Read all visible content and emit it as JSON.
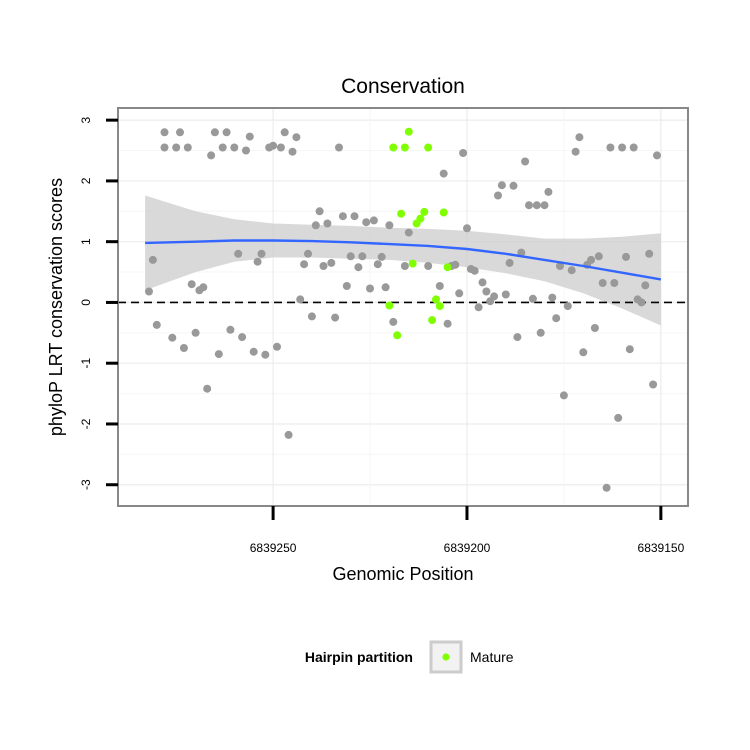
{
  "chart_data": {
    "type": "scatter",
    "title": "Conservation",
    "xlabel": "Genomic Position",
    "ylabel": "phyloP LRT conservation scores",
    "x_reversed": true,
    "xlim": [
      6839290,
      6839143
    ],
    "ylim": [
      -3.35,
      3.2
    ],
    "x_ticks": [
      6839250,
      6839200,
      6839150
    ],
    "x_tick_labels": [
      "6839250",
      "6839200",
      "6839150"
    ],
    "y_ticks": [
      -3,
      -2,
      -1,
      0,
      1,
      2,
      3
    ],
    "y_tick_labels": [
      "-3",
      "-2",
      "-1",
      "0",
      "1",
      "2",
      "3"
    ],
    "grid": true,
    "reference_line": {
      "y": 0,
      "style": "dashed"
    },
    "legend": {
      "title": "Hairpin partition",
      "position": "bottom",
      "entries": [
        "Mature"
      ]
    },
    "colors": {
      "background": "#ffffff",
      "panel_border": "#888888",
      "other": "#999999",
      "mature": "#7fff00",
      "smooth": "#3366ff",
      "ribbon": "#cccccc"
    },
    "series": [
      {
        "group": "other",
        "points": [
          [
            6839282,
            0.18
          ],
          [
            6839281,
            0.7
          ],
          [
            6839280,
            -0.37
          ],
          [
            6839278,
            2.8
          ],
          [
            6839278,
            2.55
          ],
          [
            6839276,
            -0.58
          ],
          [
            6839275,
            2.55
          ],
          [
            6839274,
            2.8
          ],
          [
            6839273,
            -0.75
          ],
          [
            6839272,
            2.55
          ],
          [
            6839271,
            0.3
          ],
          [
            6839270,
            -0.5
          ],
          [
            6839269,
            0.2
          ],
          [
            6839268,
            0.25
          ],
          [
            6839267,
            -1.42
          ],
          [
            6839266,
            2.42
          ],
          [
            6839265,
            2.8
          ],
          [
            6839264,
            -0.85
          ],
          [
            6839263,
            2.55
          ],
          [
            6839262,
            2.8
          ],
          [
            6839261,
            -0.45
          ],
          [
            6839260,
            2.55
          ],
          [
            6839259,
            0.8
          ],
          [
            6839258,
            -0.57
          ],
          [
            6839257,
            2.5
          ],
          [
            6839256,
            2.73
          ],
          [
            6839255,
            -0.81
          ],
          [
            6839254,
            0.67
          ],
          [
            6839253,
            0.8
          ],
          [
            6839252,
            -0.86
          ],
          [
            6839251,
            2.55
          ],
          [
            6839250,
            2.58
          ],
          [
            6839249,
            -0.73
          ],
          [
            6839248,
            2.55
          ],
          [
            6839247,
            2.8
          ],
          [
            6839246,
            -2.18
          ],
          [
            6839245,
            2.48
          ],
          [
            6839244,
            2.72
          ],
          [
            6839243,
            0.05
          ],
          [
            6839242,
            0.63
          ],
          [
            6839241,
            0.8
          ],
          [
            6839240,
            -0.23
          ],
          [
            6839239,
            1.27
          ],
          [
            6839238,
            1.5
          ],
          [
            6839237,
            0.6
          ],
          [
            6839236,
            1.3
          ],
          [
            6839235,
            0.65
          ],
          [
            6839234,
            -0.25
          ],
          [
            6839233,
            2.55
          ],
          [
            6839232,
            1.42
          ],
          [
            6839231,
            0.27
          ],
          [
            6839230,
            0.76
          ],
          [
            6839229,
            1.42
          ],
          [
            6839228,
            0.58
          ],
          [
            6839227,
            0.76
          ],
          [
            6839226,
            1.32
          ],
          [
            6839225,
            0.23
          ],
          [
            6839224,
            1.35
          ],
          [
            6839223,
            0.63
          ],
          [
            6839222,
            0.75
          ],
          [
            6839221,
            0.25
          ],
          [
            6839220,
            1.27
          ],
          [
            6839219,
            -0.32
          ],
          [
            6839216,
            0.6
          ],
          [
            6839215,
            1.15
          ],
          [
            6839210,
            0.6
          ],
          [
            6839207,
            0.27
          ],
          [
            6839206,
            2.12
          ],
          [
            6839205,
            -0.35
          ],
          [
            6839204,
            0.6
          ],
          [
            6839203,
            0.62
          ],
          [
            6839202,
            0.15
          ],
          [
            6839201,
            2.46
          ],
          [
            6839200,
            1.22
          ],
          [
            6839199,
            0.55
          ],
          [
            6839198,
            0.52
          ],
          [
            6839197,
            -0.08
          ],
          [
            6839196,
            0.33
          ],
          [
            6839195,
            0.18
          ],
          [
            6839194,
            0.02
          ],
          [
            6839193,
            0.1
          ],
          [
            6839192,
            1.76
          ],
          [
            6839191,
            1.93
          ],
          [
            6839190,
            0.13
          ],
          [
            6839189,
            0.65
          ],
          [
            6839188,
            1.92
          ],
          [
            6839187,
            -0.57
          ],
          [
            6839186,
            0.82
          ],
          [
            6839185,
            2.32
          ],
          [
            6839184,
            1.6
          ],
          [
            6839183,
            0.06
          ],
          [
            6839182,
            1.6
          ],
          [
            6839181,
            -0.5
          ],
          [
            6839180,
            1.6
          ],
          [
            6839179,
            1.82
          ],
          [
            6839178,
            0.08
          ],
          [
            6839177,
            -0.26
          ],
          [
            6839176,
            0.6
          ],
          [
            6839175,
            -1.53
          ],
          [
            6839174,
            -0.06
          ],
          [
            6839173,
            0.53
          ],
          [
            6839172,
            2.48
          ],
          [
            6839171,
            2.72
          ],
          [
            6839170,
            -0.82
          ],
          [
            6839169,
            0.62
          ],
          [
            6839168,
            0.7
          ],
          [
            6839167,
            -0.42
          ],
          [
            6839166,
            0.76
          ],
          [
            6839165,
            0.32
          ],
          [
            6839164,
            -3.05
          ],
          [
            6839163,
            2.55
          ],
          [
            6839162,
            0.32
          ],
          [
            6839161,
            -1.9
          ],
          [
            6839160,
            2.55
          ],
          [
            6839159,
            0.75
          ],
          [
            6839158,
            -0.77
          ],
          [
            6839157,
            2.55
          ],
          [
            6839156,
            0.05
          ],
          [
            6839155,
            0.0
          ],
          [
            6839154,
            0.28
          ],
          [
            6839153,
            0.8
          ],
          [
            6839152,
            -1.35
          ],
          [
            6839151,
            2.42
          ]
        ]
      },
      {
        "group": "mature",
        "name": "Mature",
        "points": [
          [
            6839220,
            -0.05
          ],
          [
            6839219,
            2.55
          ],
          [
            6839218,
            -0.54
          ],
          [
            6839217,
            1.46
          ],
          [
            6839216,
            2.55
          ],
          [
            6839215,
            2.81
          ],
          [
            6839214,
            0.64
          ],
          [
            6839213,
            1.3
          ],
          [
            6839212,
            1.38
          ],
          [
            6839211,
            1.49
          ],
          [
            6839210,
            2.55
          ],
          [
            6839209,
            -0.29
          ],
          [
            6839208,
            0.05
          ],
          [
            6839207,
            -0.06
          ],
          [
            6839206,
            1.48
          ],
          [
            6839205,
            0.58
          ]
        ]
      }
    ],
    "smooth": {
      "x": [
        6839283,
        6839270,
        6839260,
        6839250,
        6839240,
        6839230,
        6839220,
        6839210,
        6839200,
        6839190,
        6839180,
        6839170,
        6839160,
        6839150
      ],
      "y": [
        0.98,
        1.0,
        1.02,
        1.02,
        1.01,
        0.99,
        0.96,
        0.93,
        0.88,
        0.8,
        0.7,
        0.6,
        0.49,
        0.38
      ],
      "lower": [
        0.2,
        0.5,
        0.67,
        0.74,
        0.74,
        0.72,
        0.7,
        0.65,
        0.58,
        0.48,
        0.35,
        0.15,
        -0.1,
        -0.38
      ],
      "upper": [
        1.76,
        1.5,
        1.37,
        1.3,
        1.28,
        1.26,
        1.23,
        1.21,
        1.18,
        1.12,
        1.05,
        1.05,
        1.08,
        1.14
      ]
    }
  }
}
